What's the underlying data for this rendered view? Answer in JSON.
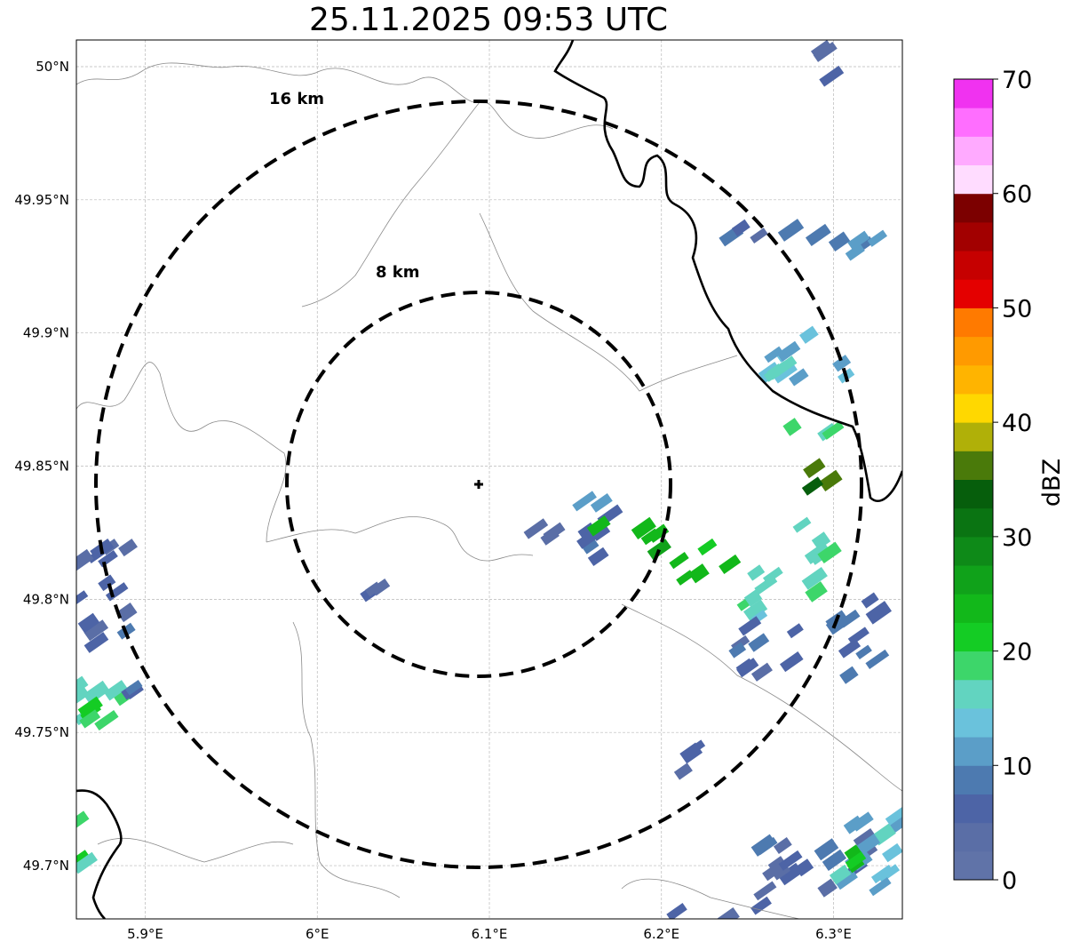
{
  "title": "25.11.2025 09:53 UTC",
  "map": {
    "lon_range": [
      5.86,
      6.34
    ],
    "lat_range": [
      49.68,
      50.01
    ],
    "x_ticks": [
      "5.9°E",
      "6°E",
      "6.1°E",
      "6.2°E",
      "6.3°E"
    ],
    "y_ticks": [
      "49.7°N",
      "49.75°N",
      "49.8°N",
      "49.85°N",
      "49.9°N",
      "49.95°N",
      "50°N"
    ],
    "gridlines": true,
    "radar_site": {
      "lon": 6.095,
      "lat": 49.843
    },
    "range_rings": [
      {
        "label": "8 km",
        "radius_km": 8
      },
      {
        "label": "16 km",
        "radius_km": 16
      }
    ]
  },
  "colorbar": {
    "label": "dBZ",
    "min": 0,
    "max": 70,
    "tick_labels": [
      "0",
      "10",
      "20",
      "30",
      "40",
      "50",
      "60",
      "70"
    ],
    "colors": [
      "#6073a8",
      "#5a6ea6",
      "#4d64a6",
      "#4d7ab0",
      "#5b9ec8",
      "#6ac2dc",
      "#62d4c0",
      "#3dd66a",
      "#14cc24",
      "#12b81a",
      "#10a21a",
      "#0e8a18",
      "#0a7412",
      "#065e0c",
      "#4a7a0a",
      "#b0b008",
      "#ffd800",
      "#ffb400",
      "#ff9a00",
      "#ff7a00",
      "#e40000",
      "#c60000",
      "#a20000",
      "#7c0000",
      "#ffdcff",
      "#ffaaff",
      "#ff6eff",
      "#f032f0"
    ]
  },
  "precip_cells": [
    {
      "lon0": 6.18,
      "lat0": 49.838,
      "lon1": 6.15,
      "lat1": 49.815,
      "dbz": 8
    },
    {
      "lon0": 6.14,
      "lat0": 49.83,
      "lon1": 6.12,
      "lat1": 49.82,
      "dbz": 6
    },
    {
      "lon0": 6.16,
      "lat0": 49.828,
      "lon1": 6.2,
      "lat1": 49.818,
      "dbz": 24
    },
    {
      "lon0": 6.21,
      "lat0": 49.82,
      "lon1": 6.24,
      "lat1": 49.805,
      "dbz": 22
    },
    {
      "lon0": 6.25,
      "lat0": 49.81,
      "lon1": 6.28,
      "lat1": 49.79,
      "dbz": 16
    },
    {
      "lon0": 6.28,
      "lat0": 49.83,
      "lon1": 6.3,
      "lat1": 49.8,
      "dbz": 18
    },
    {
      "lon0": 6.28,
      "lat0": 49.85,
      "lon1": 6.3,
      "lat1": 49.84,
      "dbz": 32
    },
    {
      "lon0": 6.27,
      "lat0": 49.87,
      "lon1": 6.3,
      "lat1": 49.86,
      "dbz": 20
    },
    {
      "lon0": 6.26,
      "lat0": 49.9,
      "lon1": 6.31,
      "lat1": 49.88,
      "dbz": 14
    },
    {
      "lon0": 6.27,
      "lat0": 49.94,
      "lon1": 6.33,
      "lat1": 49.93,
      "dbz": 10
    },
    {
      "lon0": 6.23,
      "lat0": 49.94,
      "lon1": 6.26,
      "lat1": 49.93,
      "dbz": 5
    },
    {
      "lon0": 6.3,
      "lat0": 49.8,
      "lon1": 6.33,
      "lat1": 49.77,
      "dbz": 8
    },
    {
      "lon0": 6.24,
      "lat0": 49.79,
      "lon1": 6.28,
      "lat1": 49.77,
      "dbz": 6
    },
    {
      "lon0": 5.86,
      "lat0": 49.82,
      "lon1": 5.89,
      "lat1": 49.78,
      "dbz": 6
    },
    {
      "lon0": 5.86,
      "lat0": 49.77,
      "lon1": 5.89,
      "lat1": 49.75,
      "dbz": 16
    },
    {
      "lon0": 5.86,
      "lat0": 49.765,
      "lon1": 5.87,
      "lat1": 49.755,
      "dbz": 21
    },
    {
      "lon0": 5.89,
      "lat0": 49.77,
      "lon1": 5.9,
      "lat1": 49.74,
      "dbz": 7
    },
    {
      "lon0": 5.86,
      "lat0": 49.72,
      "lon1": 5.87,
      "lat1": 49.69,
      "dbz": 18
    },
    {
      "lon0": 6.25,
      "lat0": 49.71,
      "lon1": 6.32,
      "lat1": 49.69,
      "dbz": 6
    },
    {
      "lon0": 6.3,
      "lat0": 49.72,
      "lon1": 6.34,
      "lat1": 49.69,
      "dbz": 12
    },
    {
      "lon0": 6.31,
      "lat0": 49.705,
      "lon1": 6.32,
      "lat1": 49.7,
      "dbz": 22
    },
    {
      "lon0": 6.03,
      "lat0": 49.81,
      "lon1": 6.04,
      "lat1": 49.8,
      "dbz": 6
    },
    {
      "lon0": 6.21,
      "lat0": 49.745,
      "lon1": 6.22,
      "lat1": 49.735,
      "dbz": 4
    },
    {
      "lon0": 6.29,
      "lat0": 50.01,
      "lon1": 6.3,
      "lat1": 49.99,
      "dbz": 5
    },
    {
      "lon0": 6.2,
      "lat0": 49.685,
      "lon1": 6.26,
      "lat1": 49.68,
      "dbz": 6
    }
  ]
}
